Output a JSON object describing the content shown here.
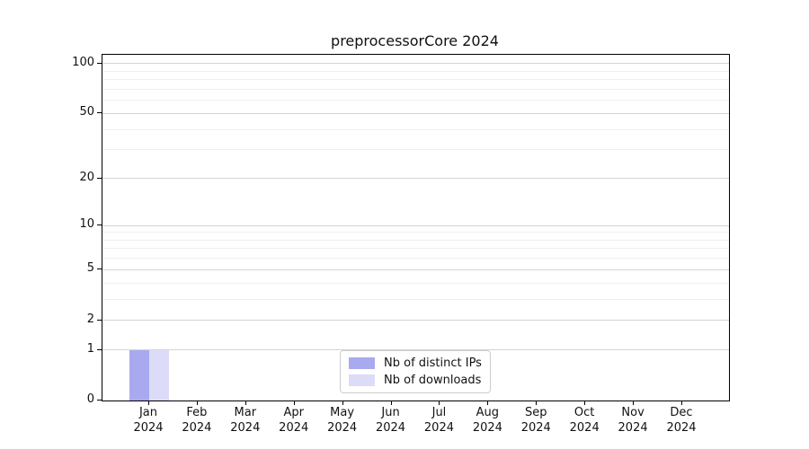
{
  "chart_data": {
    "type": "bar",
    "title": "preprocessorCore 2024",
    "categories": [
      "Jan",
      "Feb",
      "Mar",
      "Apr",
      "May",
      "Jun",
      "Jul",
      "Aug",
      "Sep",
      "Oct",
      "Nov",
      "Dec"
    ],
    "category_year": "2024",
    "series": [
      {
        "name": "Nb of distinct IPs",
        "color": "#a9a9f0",
        "values": [
          1,
          0,
          0,
          0,
          0,
          0,
          0,
          0,
          0,
          0,
          0,
          0
        ]
      },
      {
        "name": "Nb of downloads",
        "color": "#dcdcf8",
        "values": [
          1,
          0,
          0,
          0,
          0,
          0,
          0,
          0,
          0,
          0,
          0,
          0
        ]
      }
    ],
    "xlabel": "",
    "ylabel": "",
    "yscale": "log1p",
    "ylim": [
      0,
      113
    ],
    "y_major_ticks": [
      0,
      1,
      2,
      5,
      10,
      20,
      50,
      100
    ],
    "y_minor_ticks": [
      3,
      4,
      6,
      7,
      8,
      9,
      30,
      40,
      60,
      70,
      80,
      90
    ],
    "grid": "horizontal",
    "legend_position": "lower center"
  },
  "colors": {
    "background": "#ffffff",
    "spine": "#000000",
    "text": "#111111",
    "major_grid": "#d4d4d4",
    "minor_grid": "#f0f0f0",
    "legend_border": "#cccccc",
    "bar_distinct_ips": "#a9a9f0",
    "bar_downloads": "#dcdcf8"
  }
}
